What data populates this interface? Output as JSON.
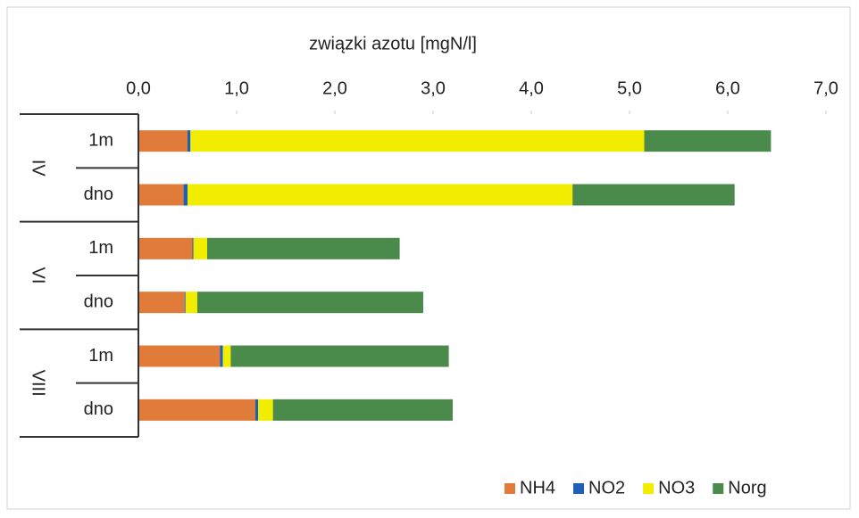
{
  "chart_data": {
    "type": "stacked-bar-horizontal",
    "title": "związki azotu [mgN/l]",
    "groups": [
      "IV",
      "VI",
      "VIII"
    ],
    "categories": [
      "1m",
      "dno",
      "1m",
      "dno",
      "1m",
      "dno"
    ],
    "series": [
      {
        "name": "NH4",
        "color": "#e07b39",
        "values": [
          0.5,
          0.46,
          0.55,
          0.47,
          0.83,
          1.19
        ]
      },
      {
        "name": "NO2",
        "color": "#1f5fb5",
        "values": [
          0.03,
          0.04,
          0.01,
          0.01,
          0.03,
          0.03
        ]
      },
      {
        "name": "NO3",
        "color": "#f2ec00",
        "values": [
          4.62,
          3.92,
          0.14,
          0.12,
          0.08,
          0.15
        ]
      },
      {
        "name": "Norg",
        "color": "#4a8a4a",
        "values": [
          1.29,
          1.65,
          1.96,
          2.3,
          2.22,
          1.83
        ]
      }
    ],
    "xlim": [
      0,
      7
    ],
    "xticks": [
      {
        "value": 0,
        "label": "0,0"
      },
      {
        "value": 1,
        "label": "1,0"
      },
      {
        "value": 2,
        "label": "2,0"
      },
      {
        "value": 3,
        "label": "3,0"
      },
      {
        "value": 4,
        "label": "4,0"
      },
      {
        "value": 5,
        "label": "5,0"
      },
      {
        "value": 6,
        "label": "6,0"
      },
      {
        "value": 7,
        "label": "7,0"
      }
    ],
    "grid": false,
    "legend": "bottom-right"
  }
}
